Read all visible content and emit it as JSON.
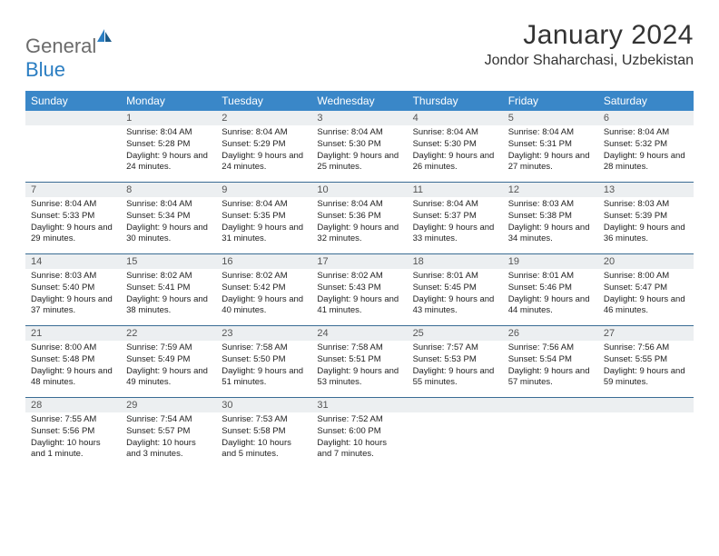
{
  "header": {
    "logo_text_1": "General",
    "logo_text_2": "Blue",
    "month_title": "January 2024",
    "location": "Jondor Shaharchasi, Uzbekistan"
  },
  "colors": {
    "header_bg": "#3a87c8",
    "header_text": "#ffffff",
    "daynum_bg": "#eceff1",
    "border": "#3a6c94",
    "logo_gray": "#6b6b6b",
    "logo_blue": "#2b7ec2"
  },
  "weekdays": [
    "Sunday",
    "Monday",
    "Tuesday",
    "Wednesday",
    "Thursday",
    "Friday",
    "Saturday"
  ],
  "weeks": [
    [
      {
        "num": "",
        "lines": []
      },
      {
        "num": "1",
        "lines": [
          "Sunrise: 8:04 AM",
          "Sunset: 5:28 PM",
          "Daylight: 9 hours and 24 minutes."
        ]
      },
      {
        "num": "2",
        "lines": [
          "Sunrise: 8:04 AM",
          "Sunset: 5:29 PM",
          "Daylight: 9 hours and 24 minutes."
        ]
      },
      {
        "num": "3",
        "lines": [
          "Sunrise: 8:04 AM",
          "Sunset: 5:30 PM",
          "Daylight: 9 hours and 25 minutes."
        ]
      },
      {
        "num": "4",
        "lines": [
          "Sunrise: 8:04 AM",
          "Sunset: 5:30 PM",
          "Daylight: 9 hours and 26 minutes."
        ]
      },
      {
        "num": "5",
        "lines": [
          "Sunrise: 8:04 AM",
          "Sunset: 5:31 PM",
          "Daylight: 9 hours and 27 minutes."
        ]
      },
      {
        "num": "6",
        "lines": [
          "Sunrise: 8:04 AM",
          "Sunset: 5:32 PM",
          "Daylight: 9 hours and 28 minutes."
        ]
      }
    ],
    [
      {
        "num": "7",
        "lines": [
          "Sunrise: 8:04 AM",
          "Sunset: 5:33 PM",
          "Daylight: 9 hours and 29 minutes."
        ]
      },
      {
        "num": "8",
        "lines": [
          "Sunrise: 8:04 AM",
          "Sunset: 5:34 PM",
          "Daylight: 9 hours and 30 minutes."
        ]
      },
      {
        "num": "9",
        "lines": [
          "Sunrise: 8:04 AM",
          "Sunset: 5:35 PM",
          "Daylight: 9 hours and 31 minutes."
        ]
      },
      {
        "num": "10",
        "lines": [
          "Sunrise: 8:04 AM",
          "Sunset: 5:36 PM",
          "Daylight: 9 hours and 32 minutes."
        ]
      },
      {
        "num": "11",
        "lines": [
          "Sunrise: 8:04 AM",
          "Sunset: 5:37 PM",
          "Daylight: 9 hours and 33 minutes."
        ]
      },
      {
        "num": "12",
        "lines": [
          "Sunrise: 8:03 AM",
          "Sunset: 5:38 PM",
          "Daylight: 9 hours and 34 minutes."
        ]
      },
      {
        "num": "13",
        "lines": [
          "Sunrise: 8:03 AM",
          "Sunset: 5:39 PM",
          "Daylight: 9 hours and 36 minutes."
        ]
      }
    ],
    [
      {
        "num": "14",
        "lines": [
          "Sunrise: 8:03 AM",
          "Sunset: 5:40 PM",
          "Daylight: 9 hours and 37 minutes."
        ]
      },
      {
        "num": "15",
        "lines": [
          "Sunrise: 8:02 AM",
          "Sunset: 5:41 PM",
          "Daylight: 9 hours and 38 minutes."
        ]
      },
      {
        "num": "16",
        "lines": [
          "Sunrise: 8:02 AM",
          "Sunset: 5:42 PM",
          "Daylight: 9 hours and 40 minutes."
        ]
      },
      {
        "num": "17",
        "lines": [
          "Sunrise: 8:02 AM",
          "Sunset: 5:43 PM",
          "Daylight: 9 hours and 41 minutes."
        ]
      },
      {
        "num": "18",
        "lines": [
          "Sunrise: 8:01 AM",
          "Sunset: 5:45 PM",
          "Daylight: 9 hours and 43 minutes."
        ]
      },
      {
        "num": "19",
        "lines": [
          "Sunrise: 8:01 AM",
          "Sunset: 5:46 PM",
          "Daylight: 9 hours and 44 minutes."
        ]
      },
      {
        "num": "20",
        "lines": [
          "Sunrise: 8:00 AM",
          "Sunset: 5:47 PM",
          "Daylight: 9 hours and 46 minutes."
        ]
      }
    ],
    [
      {
        "num": "21",
        "lines": [
          "Sunrise: 8:00 AM",
          "Sunset: 5:48 PM",
          "Daylight: 9 hours and 48 minutes."
        ]
      },
      {
        "num": "22",
        "lines": [
          "Sunrise: 7:59 AM",
          "Sunset: 5:49 PM",
          "Daylight: 9 hours and 49 minutes."
        ]
      },
      {
        "num": "23",
        "lines": [
          "Sunrise: 7:58 AM",
          "Sunset: 5:50 PM",
          "Daylight: 9 hours and 51 minutes."
        ]
      },
      {
        "num": "24",
        "lines": [
          "Sunrise: 7:58 AM",
          "Sunset: 5:51 PM",
          "Daylight: 9 hours and 53 minutes."
        ]
      },
      {
        "num": "25",
        "lines": [
          "Sunrise: 7:57 AM",
          "Sunset: 5:53 PM",
          "Daylight: 9 hours and 55 minutes."
        ]
      },
      {
        "num": "26",
        "lines": [
          "Sunrise: 7:56 AM",
          "Sunset: 5:54 PM",
          "Daylight: 9 hours and 57 minutes."
        ]
      },
      {
        "num": "27",
        "lines": [
          "Sunrise: 7:56 AM",
          "Sunset: 5:55 PM",
          "Daylight: 9 hours and 59 minutes."
        ]
      }
    ],
    [
      {
        "num": "28",
        "lines": [
          "Sunrise: 7:55 AM",
          "Sunset: 5:56 PM",
          "Daylight: 10 hours and 1 minute."
        ]
      },
      {
        "num": "29",
        "lines": [
          "Sunrise: 7:54 AM",
          "Sunset: 5:57 PM",
          "Daylight: 10 hours and 3 minutes."
        ]
      },
      {
        "num": "30",
        "lines": [
          "Sunrise: 7:53 AM",
          "Sunset: 5:58 PM",
          "Daylight: 10 hours and 5 minutes."
        ]
      },
      {
        "num": "31",
        "lines": [
          "Sunrise: 7:52 AM",
          "Sunset: 6:00 PM",
          "Daylight: 10 hours and 7 minutes."
        ]
      },
      {
        "num": "",
        "lines": []
      },
      {
        "num": "",
        "lines": []
      },
      {
        "num": "",
        "lines": []
      }
    ]
  ]
}
